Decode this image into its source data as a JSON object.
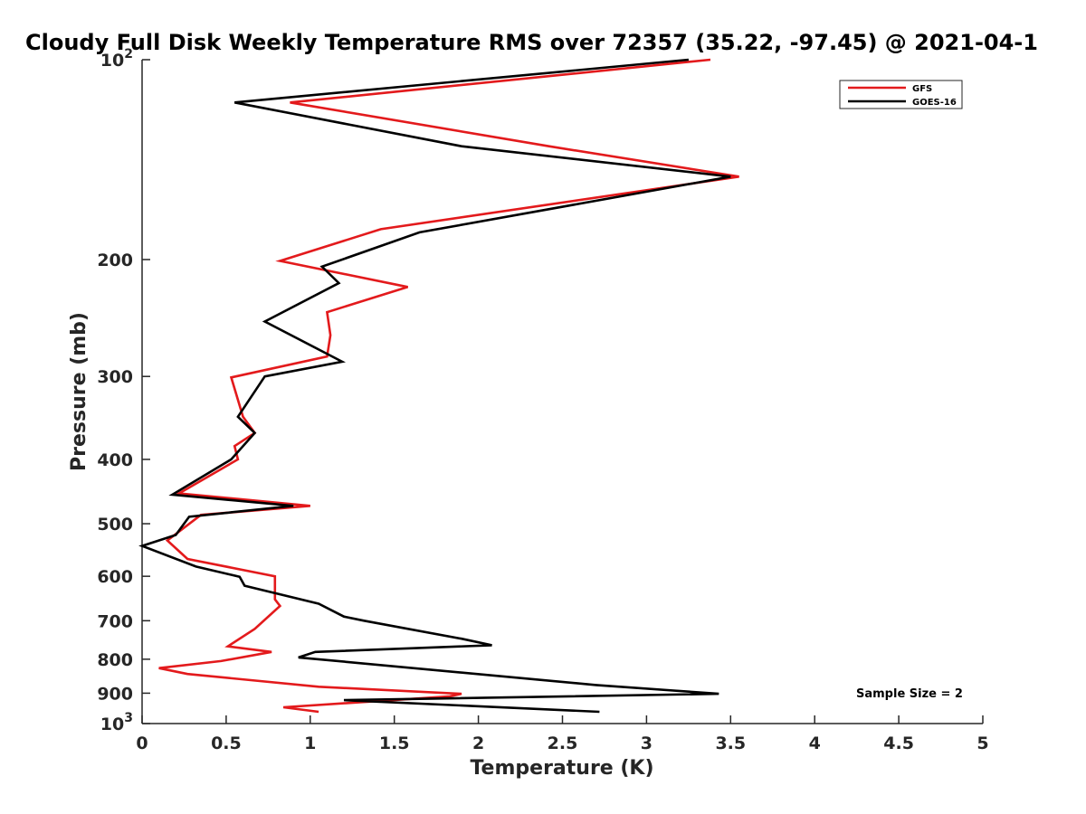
{
  "chart_data": {
    "type": "line",
    "title": "Cloudy Full Disk Weekly Temperature RMS over 72357 (35.22, -97.45) @ 2021-04-1",
    "xlabel": "Temperature (K)",
    "ylabel": "Pressure (mb)",
    "xlim": [
      0,
      5
    ],
    "ylim": [
      100,
      1000
    ],
    "yscale": "log",
    "y_reversed": true,
    "x_ticks": [
      "0",
      "0.5",
      "1",
      "1.5",
      "2",
      "2.5",
      "3",
      "3.5",
      "4",
      "4.5",
      "5"
    ],
    "y_ticks": [
      {
        "value": 100,
        "base": "10",
        "exp": "2"
      },
      {
        "value": 200,
        "label": "200"
      },
      {
        "value": 300,
        "label": "300"
      },
      {
        "value": 400,
        "label": "400"
      },
      {
        "value": 500,
        "label": "500"
      },
      {
        "value": 600,
        "label": "600"
      },
      {
        "value": 700,
        "label": "700"
      },
      {
        "value": 800,
        "label": "800"
      },
      {
        "value": 900,
        "label": "900"
      },
      {
        "value": 1000,
        "base": "10",
        "exp": "3"
      }
    ],
    "grid": false,
    "legend_position": "top-right",
    "annotation": "Sample Size = 2",
    "series": [
      {
        "name": "GFS",
        "color": "#e31a1c",
        "points": [
          {
            "x": 3.38,
            "y": 100
          },
          {
            "x": 0.88,
            "y": 116
          },
          {
            "x": 2.42,
            "y": 135
          },
          {
            "x": 3.55,
            "y": 150
          },
          {
            "x": 1.42,
            "y": 180
          },
          {
            "x": 0.82,
            "y": 201
          },
          {
            "x": 1.58,
            "y": 220
          },
          {
            "x": 1.1,
            "y": 240
          },
          {
            "x": 1.12,
            "y": 260
          },
          {
            "x": 1.1,
            "y": 280
          },
          {
            "x": 0.53,
            "y": 301
          },
          {
            "x": 0.6,
            "y": 345
          },
          {
            "x": 0.67,
            "y": 365
          },
          {
            "x": 0.55,
            "y": 382
          },
          {
            "x": 0.57,
            "y": 400
          },
          {
            "x": 0.22,
            "y": 450
          },
          {
            "x": 1.0,
            "y": 470
          },
          {
            "x": 0.35,
            "y": 485
          },
          {
            "x": 0.15,
            "y": 530
          },
          {
            "x": 0.27,
            "y": 565
          },
          {
            "x": 0.79,
            "y": 600
          },
          {
            "x": 0.79,
            "y": 650
          },
          {
            "x": 0.82,
            "y": 665
          },
          {
            "x": 0.67,
            "y": 720
          },
          {
            "x": 0.51,
            "y": 765
          },
          {
            "x": 0.77,
            "y": 780
          },
          {
            "x": 0.47,
            "y": 805
          },
          {
            "x": 0.1,
            "y": 825
          },
          {
            "x": 0.27,
            "y": 842
          },
          {
            "x": 1.05,
            "y": 880
          },
          {
            "x": 1.9,
            "y": 902
          },
          {
            "x": 1.83,
            "y": 910
          },
          {
            "x": 0.84,
            "y": 945
          },
          {
            "x": 1.05,
            "y": 960
          }
        ]
      },
      {
        "name": "GOES-16",
        "color": "#000000",
        "points": [
          {
            "x": 3.25,
            "y": 100
          },
          {
            "x": 0.55,
            "y": 116
          },
          {
            "x": 1.9,
            "y": 135
          },
          {
            "x": 3.5,
            "y": 150
          },
          {
            "x": 1.65,
            "y": 182
          },
          {
            "x": 1.07,
            "y": 205
          },
          {
            "x": 1.17,
            "y": 217
          },
          {
            "x": 0.73,
            "y": 248
          },
          {
            "x": 1.19,
            "y": 285
          },
          {
            "x": 0.73,
            "y": 300
          },
          {
            "x": 0.57,
            "y": 345
          },
          {
            "x": 0.67,
            "y": 365
          },
          {
            "x": 0.53,
            "y": 400
          },
          {
            "x": 0.18,
            "y": 452
          },
          {
            "x": 0.9,
            "y": 470
          },
          {
            "x": 0.28,
            "y": 488
          },
          {
            "x": 0.2,
            "y": 520
          },
          {
            "x": 0.0,
            "y": 540
          },
          {
            "x": 0.32,
            "y": 580
          },
          {
            "x": 0.58,
            "y": 601
          },
          {
            "x": 0.61,
            "y": 620
          },
          {
            "x": 1.05,
            "y": 660
          },
          {
            "x": 1.2,
            "y": 690
          },
          {
            "x": 1.32,
            "y": 700
          },
          {
            "x": 1.9,
            "y": 745
          },
          {
            "x": 2.08,
            "y": 762
          },
          {
            "x": 1.03,
            "y": 780
          },
          {
            "x": 0.93,
            "y": 795
          },
          {
            "x": 2.7,
            "y": 875
          },
          {
            "x": 3.43,
            "y": 902
          },
          {
            "x": 1.2,
            "y": 922
          },
          {
            "x": 2.72,
            "y": 960
          }
        ]
      }
    ]
  }
}
